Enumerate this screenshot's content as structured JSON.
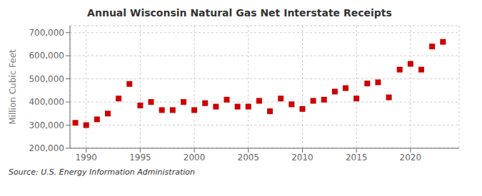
{
  "chart_data": {
    "type": "scatter",
    "title": "Annual Wisconsin Natural Gas Net Interstate Receipts",
    "ylabel": "Million Cubic Feet",
    "source": "Source: U.S. Energy Information Administration",
    "x": [
      1989,
      1990,
      1991,
      1992,
      1993,
      1994,
      1995,
      1996,
      1997,
      1998,
      1999,
      2000,
      2001,
      2002,
      2003,
      2004,
      2005,
      2006,
      2007,
      2008,
      2009,
      2010,
      2011,
      2012,
      2013,
      2014,
      2015,
      2016,
      2017,
      2018,
      2019,
      2020,
      2021,
      2022,
      2023
    ],
    "values": [
      310000,
      300000,
      325000,
      350000,
      415000,
      478000,
      385000,
      400000,
      365000,
      365000,
      400000,
      365000,
      395000,
      380000,
      410000,
      380000,
      380000,
      405000,
      360000,
      415000,
      390000,
      370000,
      405000,
      410000,
      445000,
      460000,
      415000,
      480000,
      485000,
      420000,
      540000,
      565000,
      540000,
      640000,
      660000
    ],
    "color": "#cc0000",
    "marker": "square",
    "grid": true,
    "xlim": [
      1988.5,
      2024.5
    ],
    "xticks": [
      1990,
      1995,
      2000,
      2005,
      2010,
      2015,
      2020
    ],
    "ylim": [
      200000,
      730000
    ],
    "yticks": [
      {
        "value": 200000,
        "label": "200,000"
      },
      {
        "value": 300000,
        "label": "300,000"
      },
      {
        "value": 400000,
        "label": "400,000"
      },
      {
        "value": 500000,
        "label": "500,000"
      },
      {
        "value": 600000,
        "label": "600,000"
      },
      {
        "value": 700000,
        "label": "700,000"
      }
    ]
  }
}
